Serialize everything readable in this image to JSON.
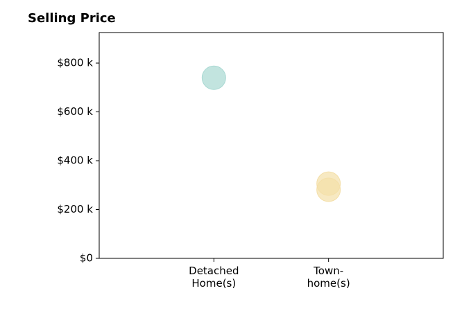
{
  "chart_data": {
    "type": "scatter",
    "title": "Selling Price",
    "categories": [
      "Detached\nHome(s)",
      "Town-\nhome(s)"
    ],
    "series": [
      {
        "color": "#a8d8d2",
        "values": [
          740000
        ]
      },
      {
        "color": "#f4dfa8",
        "values": [
          306000,
          281000
        ]
      }
    ],
    "ylim": [
      0,
      925000
    ],
    "yticks": [
      {
        "value": 0,
        "label": "$0"
      },
      {
        "value": 200000,
        "label": "$200 k"
      },
      {
        "value": 400000,
        "label": "$400 k"
      },
      {
        "value": 600000,
        "label": "$600 k"
      },
      {
        "value": 800000,
        "label": "$800 k"
      }
    ]
  }
}
